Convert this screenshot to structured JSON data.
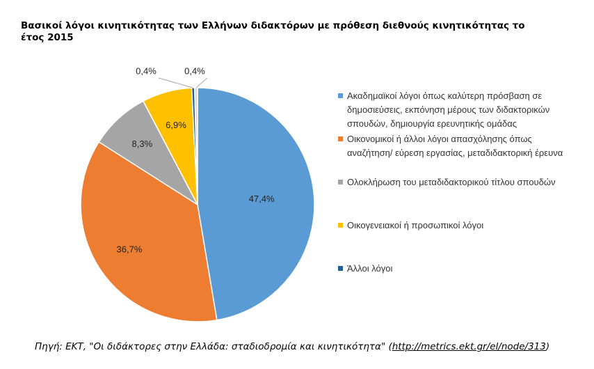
{
  "chart_data": {
    "type": "pie",
    "title": "Βασικοί λόγοι κινητικότητας των Ελλήνων διδακτόρων με πρόθεση διεθνούς κινητικότητας το έτος 2015",
    "categories": [
      "Ακαδημαϊκοί λόγοι όπως καλύτερη πρόσβαση σε δημοσιεύσεις, εκπόνηση μέρους των διδακτορικών σπουδών, δημιουργία ερευνητικής ομάδας",
      "Οικονομικοί ή άλλοι λόγοι απασχόλησης όπως αναζήτηση/ εύρεση εργασίας, μεταδιδακτορική έρευνα",
      "Ολοκλήρωση του μεταδιδακτορικού τίτλου σπουδών",
      "Οικογενειακοί ή προσωπικοί λόγοι",
      "Άλλοι λόγοι",
      null
    ],
    "values": [
      47.4,
      36.7,
      8.3,
      6.9,
      0.4,
      0.4
    ],
    "value_labels": [
      "47,4%",
      "36,7%",
      "8,3%",
      "6,9%",
      "0,4%",
      "0,4%"
    ],
    "colors": [
      "#5b9bd5",
      "#ed7d31",
      "#a5a5a5",
      "#ffc000",
      "#255e91",
      "#d9d9d9"
    ],
    "legend": "right",
    "source_prefix": "Πηγή: ΕΚΤ, \"Οι διδάκτορες στην Ελλάδα: σταδιοδρομία και κινητικότητα\" (",
    "source_link": "http://metrics.ekt.gr/el/node/313",
    "source_suffix": ")"
  }
}
